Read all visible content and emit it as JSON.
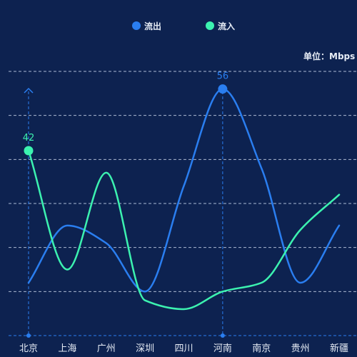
{
  "legend": {
    "out_label": "流出",
    "in_label": "流入"
  },
  "unit_label": "单位：Mbps",
  "colors": {
    "background": "#0d2250",
    "out": "#2a7ef0",
    "in": "#3cf2b0",
    "grid": "#c8d4ea",
    "crosshair": "#2a7ef0"
  },
  "chart_data": {
    "type": "line",
    "smooth": true,
    "categories": [
      "北京",
      "上海",
      "广州",
      "深圳",
      "四川",
      "河南",
      "南京",
      "贵州",
      "新疆"
    ],
    "series": [
      {
        "name": "流出",
        "color": "#2a7ef0",
        "values": [
          12,
          25,
          21,
          10,
          34,
          56,
          38,
          12,
          25
        ]
      },
      {
        "name": "流入",
        "color": "#3cf2b0",
        "values": [
          42,
          15,
          37,
          8,
          6,
          10,
          12,
          24,
          32
        ]
      }
    ],
    "ylim": [
      0,
      60
    ],
    "y_grid_step": 10,
    "grid": true,
    "legend_position": "top-center",
    "y_axis_labels_shown": false,
    "markers": [
      {
        "series": 0,
        "index": 5,
        "label": "56"
      },
      {
        "series": 1,
        "index": 0,
        "label": "42"
      }
    ],
    "crosshair_indices": [
      0,
      5
    ]
  }
}
